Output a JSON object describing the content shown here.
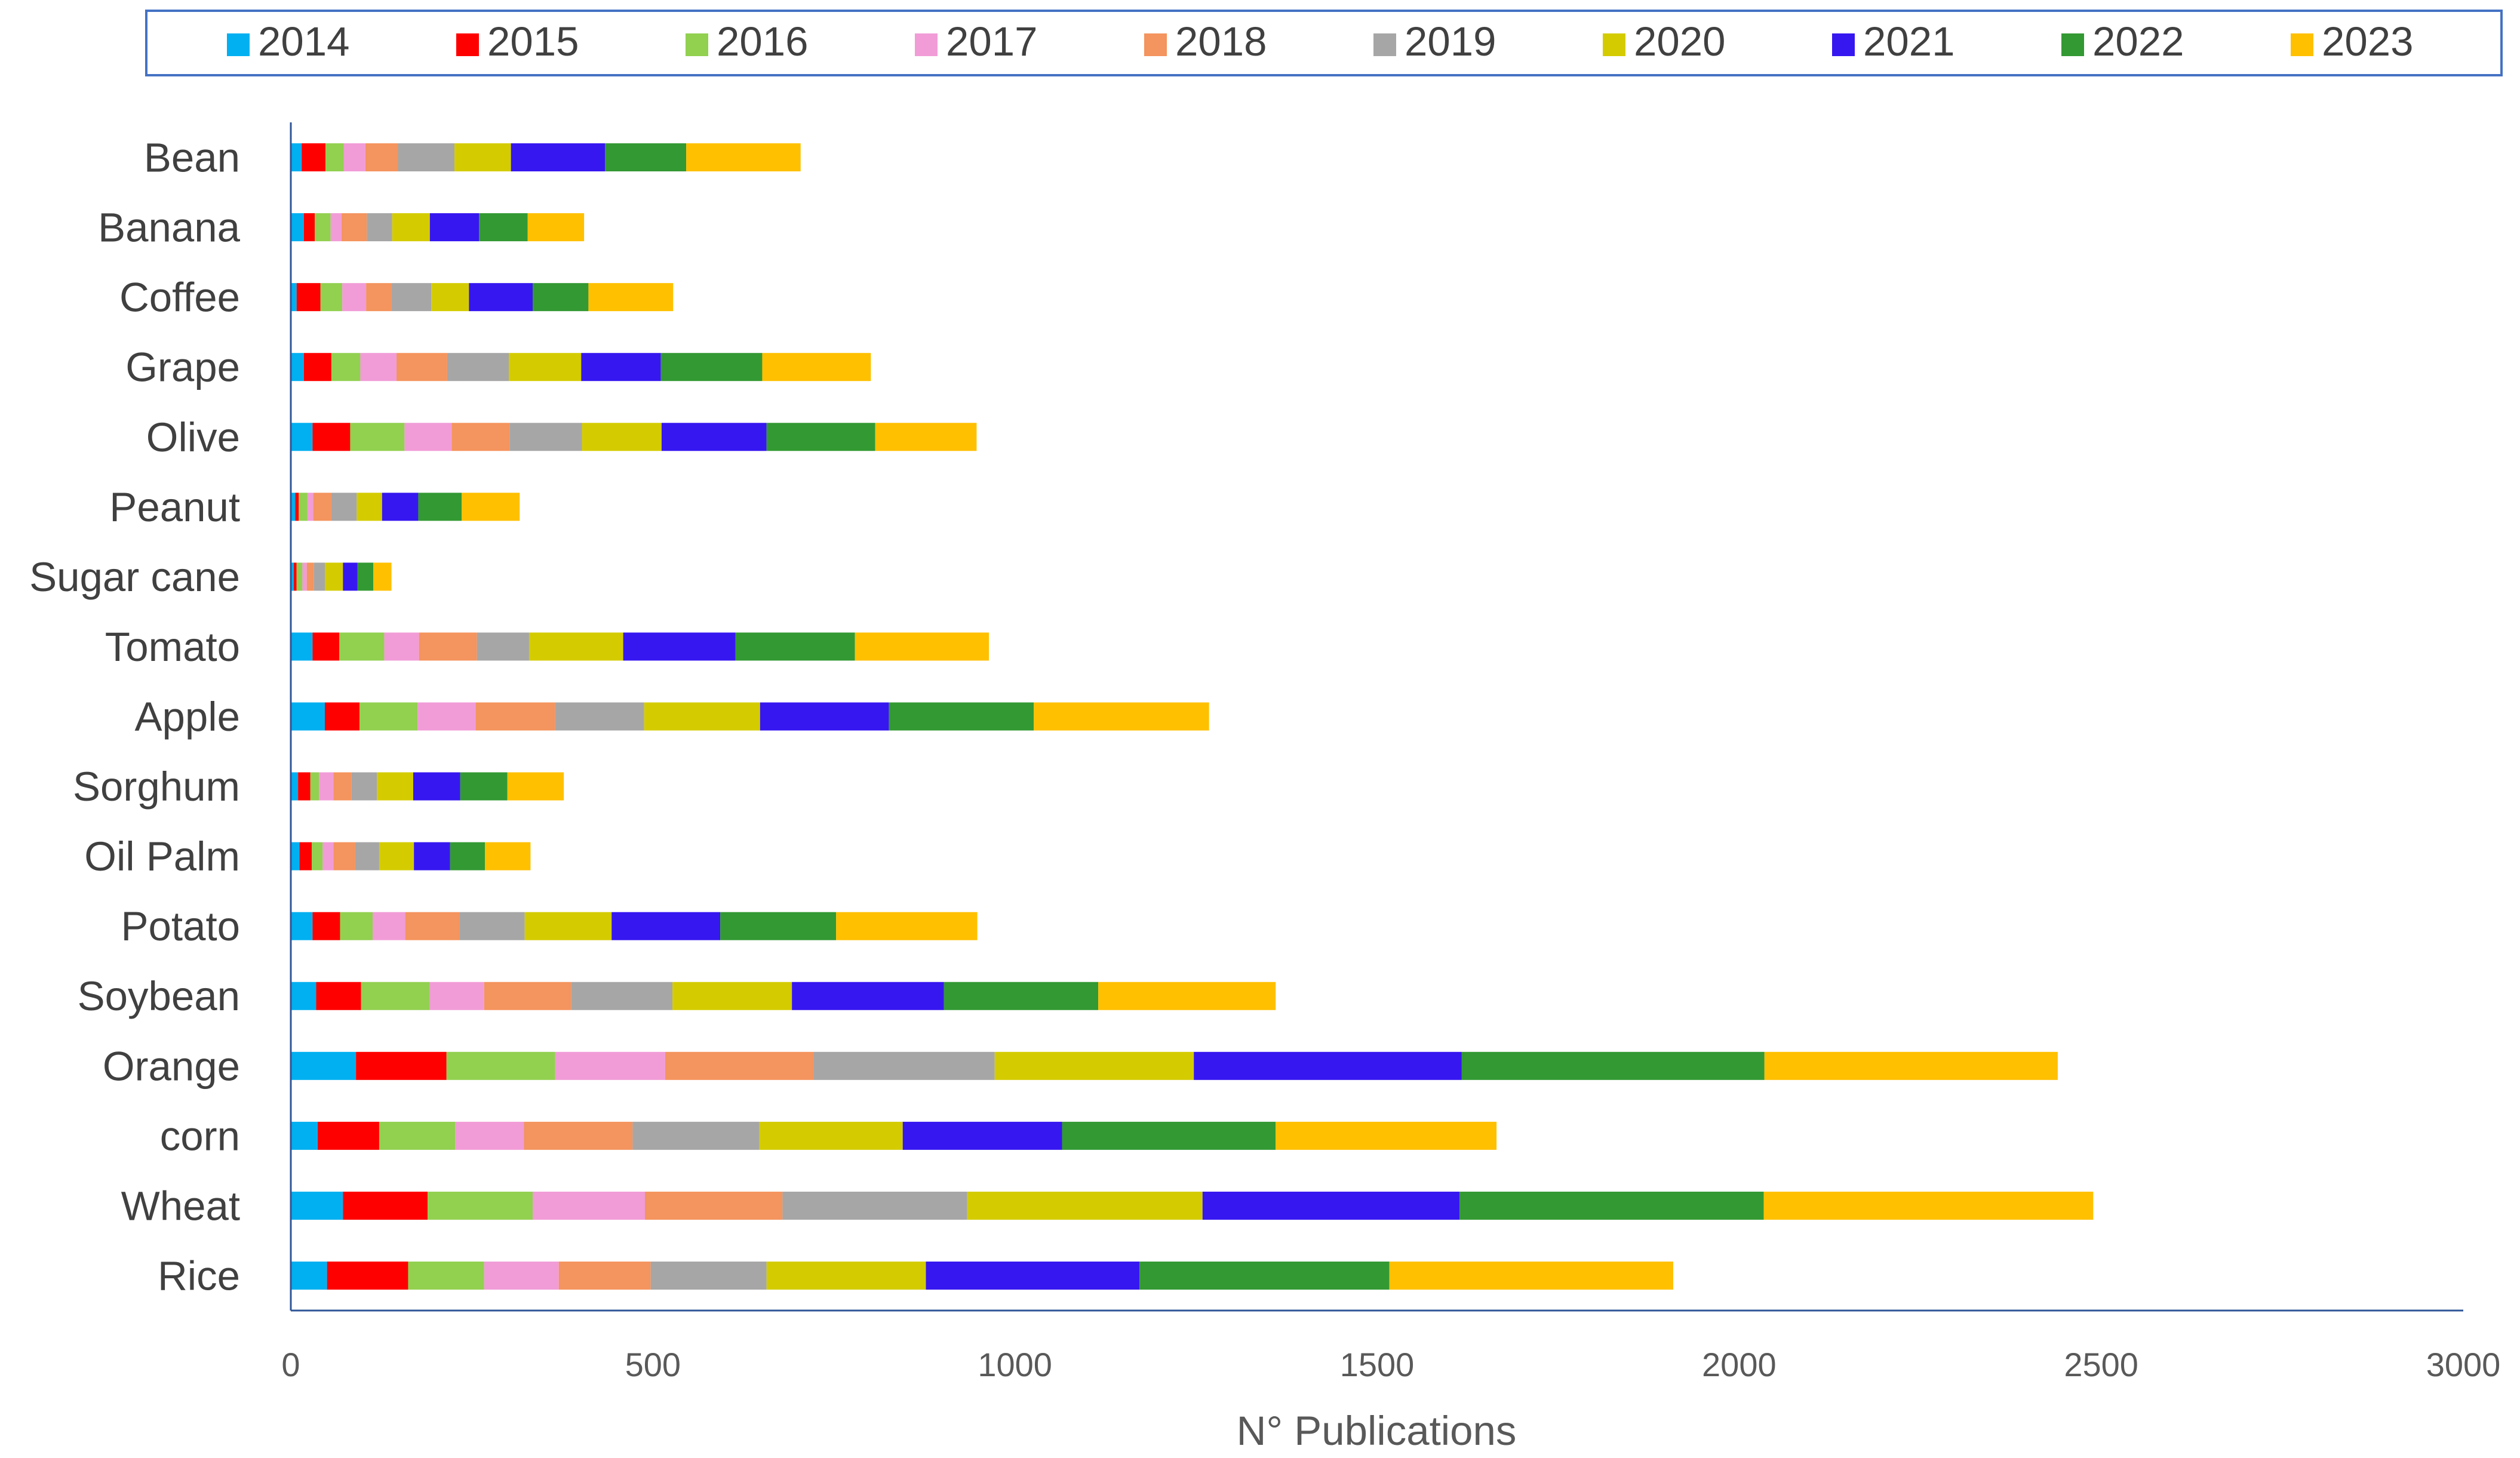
{
  "chart_data": {
    "type": "bar",
    "orientation": "horizontal",
    "stacked": true,
    "title": "",
    "xlabel": "N° Publications",
    "ylabel": "",
    "xlim": [
      0,
      3000
    ],
    "x_ticks": [
      0,
      500,
      1000,
      1500,
      2000,
      2500,
      3000
    ],
    "grid": false,
    "legend_position": "top",
    "categories": [
      "Bean",
      "Banana",
      "Coffee",
      "Grape",
      "Olive",
      "Peanut",
      "Sugar cane",
      "Tomato",
      "Apple",
      "Sorghum",
      "Oil Palm",
      "Potato",
      "Soybean",
      "Orange",
      "corn",
      "Wheat",
      "Rice"
    ],
    "series": [
      {
        "name": "2014",
        "color": "#00B0F0",
        "values": [
          15,
          18,
          8,
          18,
          30,
          6,
          4,
          30,
          47,
          10,
          12,
          30,
          35,
          90,
          37,
          72,
          50
        ]
      },
      {
        "name": "2015",
        "color": "#FF0000",
        "values": [
          33,
          15,
          33,
          38,
          52,
          5,
          4,
          37,
          48,
          17,
          17,
          38,
          62,
          125,
          85,
          117,
          112
        ]
      },
      {
        "name": "2016",
        "color": "#92D050",
        "values": [
          25,
          22,
          30,
          40,
          75,
          12,
          8,
          62,
          80,
          12,
          15,
          45,
          95,
          150,
          105,
          145,
          105
        ]
      },
      {
        "name": "2017",
        "color": "#F19CD7",
        "values": [
          30,
          15,
          33,
          50,
          65,
          8,
          6,
          48,
          80,
          20,
          15,
          45,
          75,
          152,
          95,
          155,
          103
        ]
      },
      {
        "name": "2018",
        "color": "#F4945E",
        "values": [
          45,
          35,
          35,
          70,
          80,
          25,
          10,
          80,
          110,
          25,
          30,
          75,
          120,
          205,
          150,
          190,
          127
        ]
      },
      {
        "name": "2019",
        "color": "#A6A6A6",
        "values": [
          78,
          35,
          55,
          85,
          100,
          35,
          15,
          72,
          123,
          35,
          33,
          90,
          140,
          250,
          175,
          255,
          160
        ]
      },
      {
        "name": "2020",
        "color": "#D4CC00",
        "values": [
          78,
          52,
          52,
          100,
          110,
          35,
          25,
          130,
          160,
          50,
          48,
          120,
          165,
          275,
          198,
          325,
          220
        ]
      },
      {
        "name": "2021",
        "color": "#3617F0",
        "values": [
          130,
          68,
          88,
          110,
          145,
          50,
          20,
          155,
          178,
          65,
          50,
          150,
          210,
          370,
          220,
          355,
          295
        ]
      },
      {
        "name": "2022",
        "color": "#339933",
        "values": [
          112,
          67,
          77,
          140,
          150,
          60,
          22,
          165,
          200,
          65,
          48,
          160,
          213,
          418,
          295,
          420,
          345
        ]
      },
      {
        "name": "2023",
        "color": "#FFC000",
        "values": [
          158,
          78,
          117,
          150,
          140,
          80,
          25,
          185,
          242,
          78,
          63,
          195,
          245,
          405,
          305,
          455,
          392
        ]
      }
    ]
  }
}
